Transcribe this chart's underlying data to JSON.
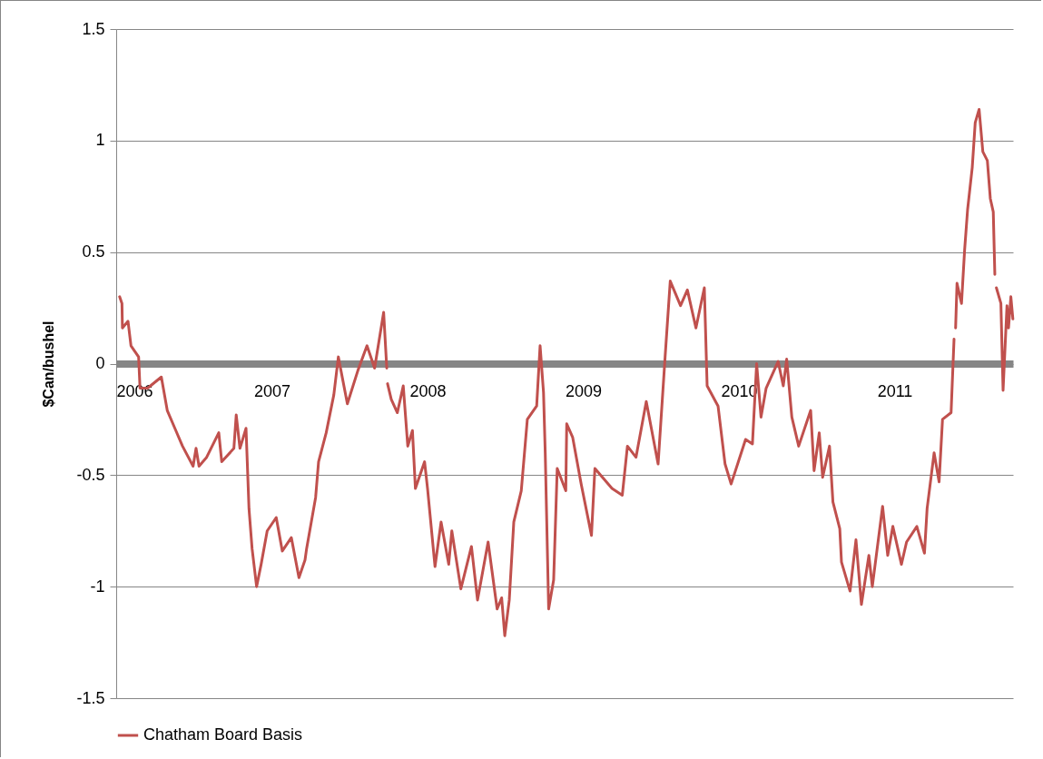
{
  "chart_data": {
    "type": "line",
    "ylabel": "$Can/bushel",
    "x": [
      2006.022,
      2006.037,
      2006.04,
      2006.076,
      2006.095,
      2006.144,
      2006.153,
      2006.202,
      2006.29,
      2006.328,
      2006.377,
      2006.426,
      2006.494,
      2006.513,
      2006.532,
      2006.581,
      2006.659,
      2006.678,
      2006.756,
      2006.771,
      2006.795,
      2006.834,
      2006.853,
      2006.873,
      2006.902,
      2006.931,
      2006.97,
      2007.028,
      2007.067,
      2007.125,
      2007.174,
      2007.213,
      2007.223,
      2007.281,
      2007.3,
      2007.349,
      2007.398,
      2007.427,
      2007.485,
      2007.553,
      2007.611,
      2007.66,
      2007.718,
      2007.738,
      2007.74,
      2007.743,
      2007.767,
      2007.806,
      2007.844,
      2007.873,
      2007.903,
      2007.922,
      2007.981,
      2008.0,
      2008.048,
      2008.087,
      2008.136,
      2008.156,
      2008.214,
      2008.282,
      2008.321,
      2008.389,
      2008.447,
      2008.476,
      2008.496,
      2008.525,
      2008.554,
      2008.602,
      2008.641,
      2008.701,
      2008.723,
      2008.745,
      2008.756,
      2008.778,
      2008.81,
      2008.833,
      2008.888,
      2008.894,
      2008.932,
      2008.987,
      2009.053,
      2009.075,
      2009.185,
      2009.251,
      2009.284,
      2009.339,
      2009.405,
      2009.481,
      2009.526,
      2009.559,
      2009.625,
      2009.669,
      2009.724,
      2009.778,
      2009.796,
      2009.866,
      2009.911,
      2009.95,
      2010.043,
      2010.087,
      2010.114,
      2010.142,
      2010.175,
      2010.252,
      2010.285,
      2010.307,
      2010.34,
      2010.384,
      2010.461,
      2010.483,
      2010.516,
      2010.538,
      2010.582,
      2010.604,
      2010.648,
      2010.659,
      2010.714,
      2010.752,
      2010.787,
      2010.835,
      2010.857,
      2010.923,
      2010.956,
      2010.989,
      2011.044,
      2011.077,
      2011.143,
      2011.192,
      2011.209,
      2011.254,
      2011.286,
      2011.308,
      2011.363,
      2011.382,
      2011.385,
      2011.392,
      2011.401,
      2011.43,
      2011.45,
      2011.469,
      2011.499,
      2011.518,
      2011.543,
      2011.567,
      2011.596,
      2011.615,
      2011.634,
      2011.644,
      2011.647,
      2011.654,
      2011.683,
      2011.697,
      2011.722,
      2011.732,
      2011.747,
      2011.76
    ],
    "series": [
      {
        "name": "Chatham Board Basis",
        "color": "#c0504d",
        "values": [
          0.3,
          0.27,
          0.16,
          0.19,
          0.08,
          0.03,
          -0.11,
          -0.11,
          -0.06,
          -0.21,
          -0.29,
          -0.37,
          -0.46,
          -0.38,
          -0.46,
          -0.42,
          -0.31,
          -0.44,
          -0.38,
          -0.23,
          -0.38,
          -0.29,
          -0.65,
          -0.83,
          -1.0,
          -0.9,
          -0.75,
          -0.69,
          -0.84,
          -0.78,
          -0.96,
          -0.88,
          -0.83,
          -0.6,
          -0.44,
          -0.31,
          -0.14,
          0.03,
          -0.18,
          -0.03,
          0.08,
          -0.02,
          0.23,
          -0.02,
          null,
          -0.09,
          -0.16,
          -0.22,
          -0.1,
          -0.37,
          -0.3,
          -0.56,
          -0.44,
          -0.56,
          -0.91,
          -0.71,
          -0.9,
          -0.75,
          -1.01,
          -0.82,
          -1.06,
          -0.8,
          -1.1,
          -1.05,
          -1.22,
          -1.06,
          -0.71,
          -0.57,
          -0.25,
          -0.19,
          0.08,
          -0.13,
          -0.4,
          -1.1,
          -0.97,
          -0.47,
          -0.57,
          -0.27,
          -0.33,
          -0.54,
          -0.77,
          -0.47,
          -0.56,
          -0.59,
          -0.37,
          -0.42,
          -0.17,
          -0.45,
          0.03,
          0.37,
          0.26,
          0.33,
          0.16,
          0.34,
          -0.1,
          -0.19,
          -0.45,
          -0.54,
          -0.34,
          -0.36,
          0.0,
          -0.24,
          -0.11,
          0.01,
          -0.1,
          0.02,
          -0.24,
          -0.37,
          -0.21,
          -0.48,
          -0.31,
          -0.51,
          -0.37,
          -0.62,
          -0.74,
          -0.89,
          -1.02,
          -0.79,
          -1.08,
          -0.86,
          -1.0,
          -0.64,
          -0.86,
          -0.73,
          -0.9,
          -0.8,
          -0.73,
          -0.85,
          -0.65,
          -0.4,
          -0.53,
          -0.25,
          -0.22,
          0.11,
          null,
          0.16,
          0.36,
          0.27,
          0.51,
          0.69,
          0.88,
          1.08,
          1.14,
          0.95,
          0.91,
          0.74,
          0.68,
          0.4,
          null,
          0.34,
          0.27,
          -0.12,
          0.26,
          0.16,
          0.3,
          0.2
        ]
      }
    ],
    "xlim": [
      2006,
      2011.761
    ],
    "xticks": [
      2006,
      2007,
      2008,
      2009,
      2010,
      2011
    ],
    "ylim": [
      -1.5,
      1.5
    ],
    "yticks": [
      -1.5,
      -1,
      -0.5,
      0,
      0.5,
      1,
      1.5
    ],
    "grid": "y",
    "legend": "bottom"
  }
}
